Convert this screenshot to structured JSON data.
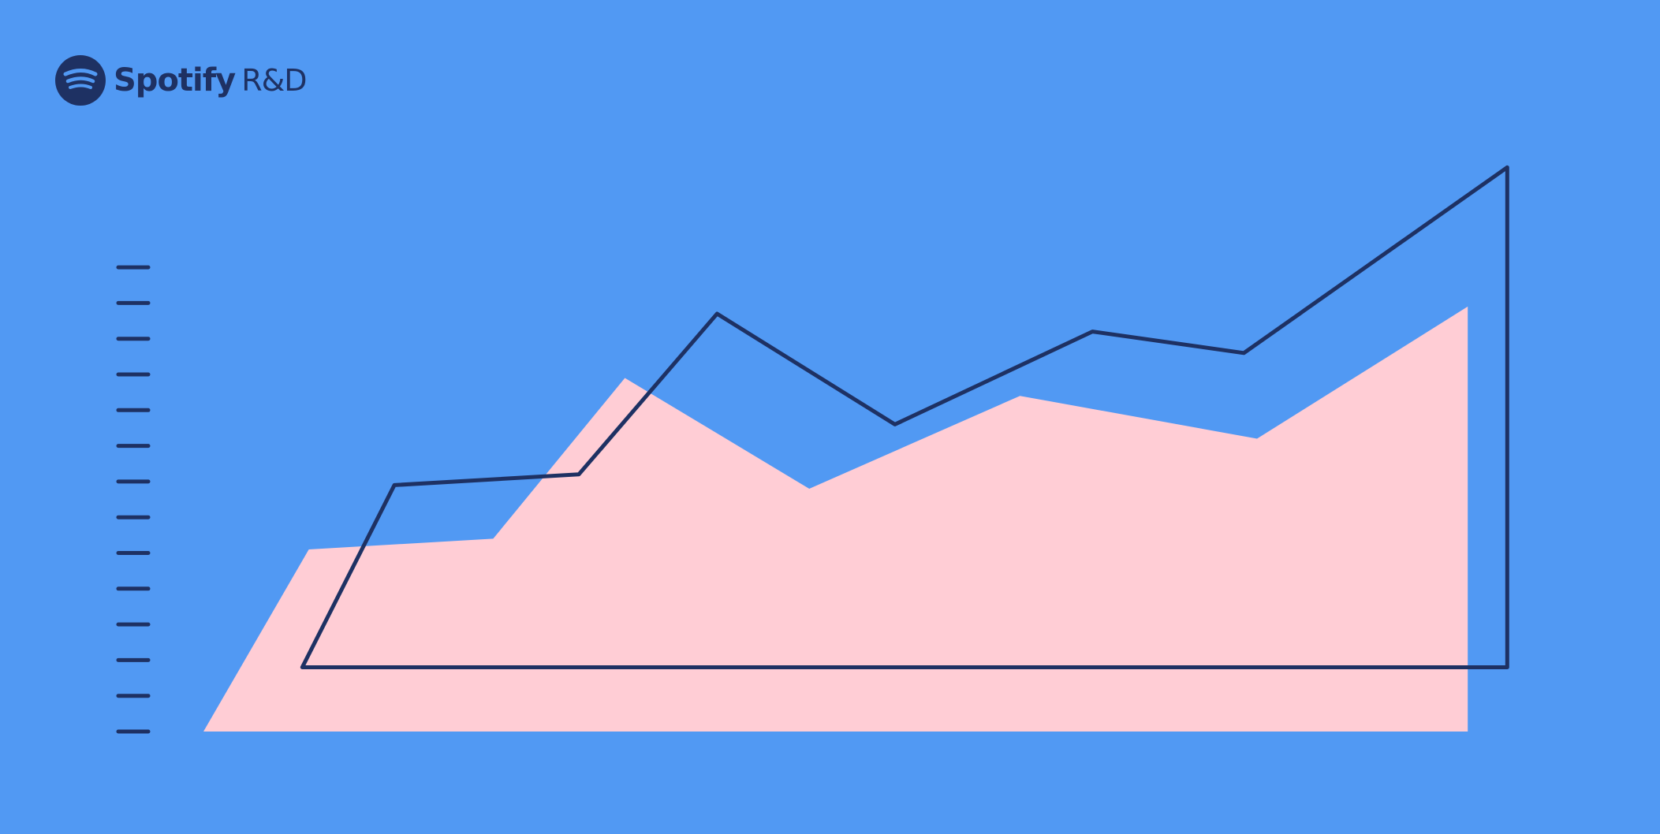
{
  "brand": {
    "name": "Spotify",
    "suffix": "R&D",
    "logo_icon": "spotify-logo-icon"
  },
  "colors": {
    "background": "#5199F3",
    "navy": "#1E3163",
    "pink": "#FFCDD5",
    "logo_waves": "#5199F3"
  },
  "chart_data": {
    "type": "area",
    "title": "",
    "xlabel": "",
    "ylabel": "",
    "tick_count": 14,
    "tick_labels": [],
    "ylim": [
      0,
      13
    ],
    "grid": false,
    "legend": "none",
    "series": [
      {
        "style": "filled-area",
        "x": [
          0,
          0.8,
          2.2,
          3.2,
          4.6,
          6.2,
          8.0,
          9.6
        ],
        "values": [
          0,
          5.1,
          5.4,
          9.9,
          6.8,
          9.4,
          8.2,
          11.9
        ]
      },
      {
        "style": "outline",
        "x": [
          0.75,
          1.45,
          2.85,
          3.9,
          5.25,
          6.75,
          7.9,
          9.9
        ],
        "values": [
          1.8,
          6.9,
          7.2,
          11.7,
          8.6,
          11.2,
          10.6,
          15.8
        ]
      }
    ]
  }
}
